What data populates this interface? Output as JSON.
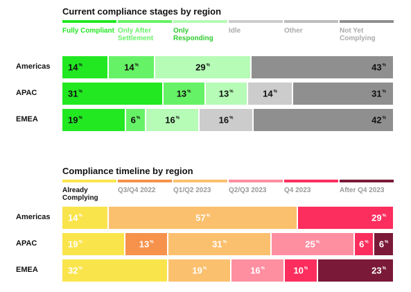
{
  "chart_data": [
    {
      "type": "bar",
      "orientation": "horizontal",
      "stacked": true,
      "title": "Current compliance stages by region",
      "legend_position": "top",
      "categories": [
        "Americas",
        "APAC",
        "EMEA"
      ],
      "series": [
        {
          "name": "Fully Compliant",
          "color": "#22e822",
          "text_color": "#111111",
          "values": [
            14,
            31,
            19
          ]
        },
        {
          "name": "Only After Settlement",
          "color": "#66f266",
          "text_color": "#111111",
          "values": [
            14,
            13,
            6
          ]
        },
        {
          "name": "Only Responding",
          "color": "#b6fbb6",
          "text_color": "#111111",
          "values": [
            29,
            13,
            16
          ]
        },
        {
          "name": "Idle",
          "color": "#cccccc",
          "text_color": "#111111",
          "values": [
            0,
            14,
            16
          ]
        },
        {
          "name": "Other",
          "color": "#bdbdbd",
          "text_color": "#111111",
          "values": [
            0,
            0,
            0
          ]
        },
        {
          "name": "Not Yet Complying",
          "color": "#8f8f8f",
          "text_color": "#111111",
          "values": [
            43,
            31,
            42
          ]
        }
      ]
    },
    {
      "type": "bar",
      "orientation": "horizontal",
      "stacked": true,
      "title": "Compliance timeline by region",
      "legend_position": "top",
      "categories": [
        "Americas",
        "APAC",
        "EMEA"
      ],
      "series": [
        {
          "name": "Already Complying",
          "color": "#fae44c",
          "text_color": "#ffffff",
          "values": [
            14,
            19,
            32
          ]
        },
        {
          "name": "Q3/Q4 2022",
          "color": "#f7924c",
          "text_color": "#ffffff",
          "values": [
            0,
            13,
            0
          ]
        },
        {
          "name": "Q1/Q2 2023",
          "color": "#fbc06e",
          "text_color": "#ffffff",
          "values": [
            57,
            31,
            19
          ]
        },
        {
          "name": "Q2/Q3 2023",
          "color": "#fd8fa1",
          "text_color": "#ffffff",
          "values": [
            0,
            25,
            16
          ]
        },
        {
          "name": "Q4 2023",
          "color": "#fb2e5e",
          "text_color": "#ffffff",
          "values": [
            29,
            6,
            10
          ]
        },
        {
          "name": "After Q4 2023",
          "color": "#7a1a38",
          "text_color": "#ffffff",
          "values": [
            0,
            6,
            23
          ]
        }
      ]
    }
  ],
  "value_suffix": "%"
}
